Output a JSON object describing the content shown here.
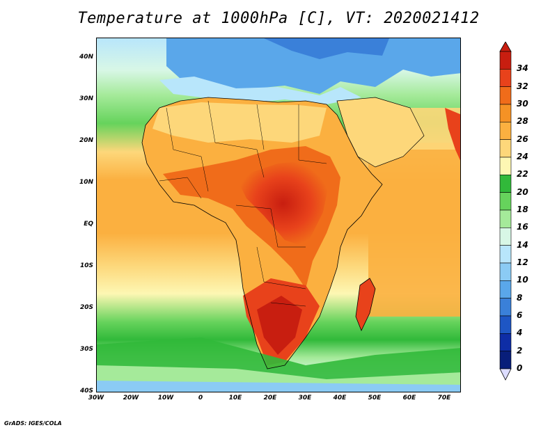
{
  "title": "Temperature at 1000hPa [C], VT: 2020021412",
  "credit": "GrADS: IGES/COLA",
  "map": {
    "lat_ticks": [
      "40N",
      "30N",
      "20N",
      "10N",
      "EQ",
      "10S",
      "20S",
      "30S",
      "40S"
    ],
    "lon_ticks": [
      "30W",
      "20W",
      "10W",
      "0",
      "10E",
      "20E",
      "30E",
      "40E",
      "50E",
      "60E",
      "70E"
    ],
    "lat_range": [
      -40,
      45
    ],
    "lon_range": [
      -30,
      75
    ]
  },
  "colorbar": {
    "labels": [
      "34",
      "32",
      "30",
      "28",
      "26",
      "24",
      "22",
      "20",
      "18",
      "16",
      "14",
      "12",
      "10",
      "8",
      "6",
      "4",
      "2",
      "0"
    ],
    "colors": [
      "#c81e10",
      "#e8421b",
      "#f06c1a",
      "#f59225",
      "#fbb040",
      "#fdd77a",
      "#fdf7b3",
      "#31b93a",
      "#66d35c",
      "#a5ea9a",
      "#d8f7e6",
      "#b8e6fb",
      "#8bcbf4",
      "#5aa7ea",
      "#3a80d9",
      "#1e56c4",
      "#0e2da6",
      "#081e7a"
    ],
    "underflow_color": "#dcdcff"
  }
}
